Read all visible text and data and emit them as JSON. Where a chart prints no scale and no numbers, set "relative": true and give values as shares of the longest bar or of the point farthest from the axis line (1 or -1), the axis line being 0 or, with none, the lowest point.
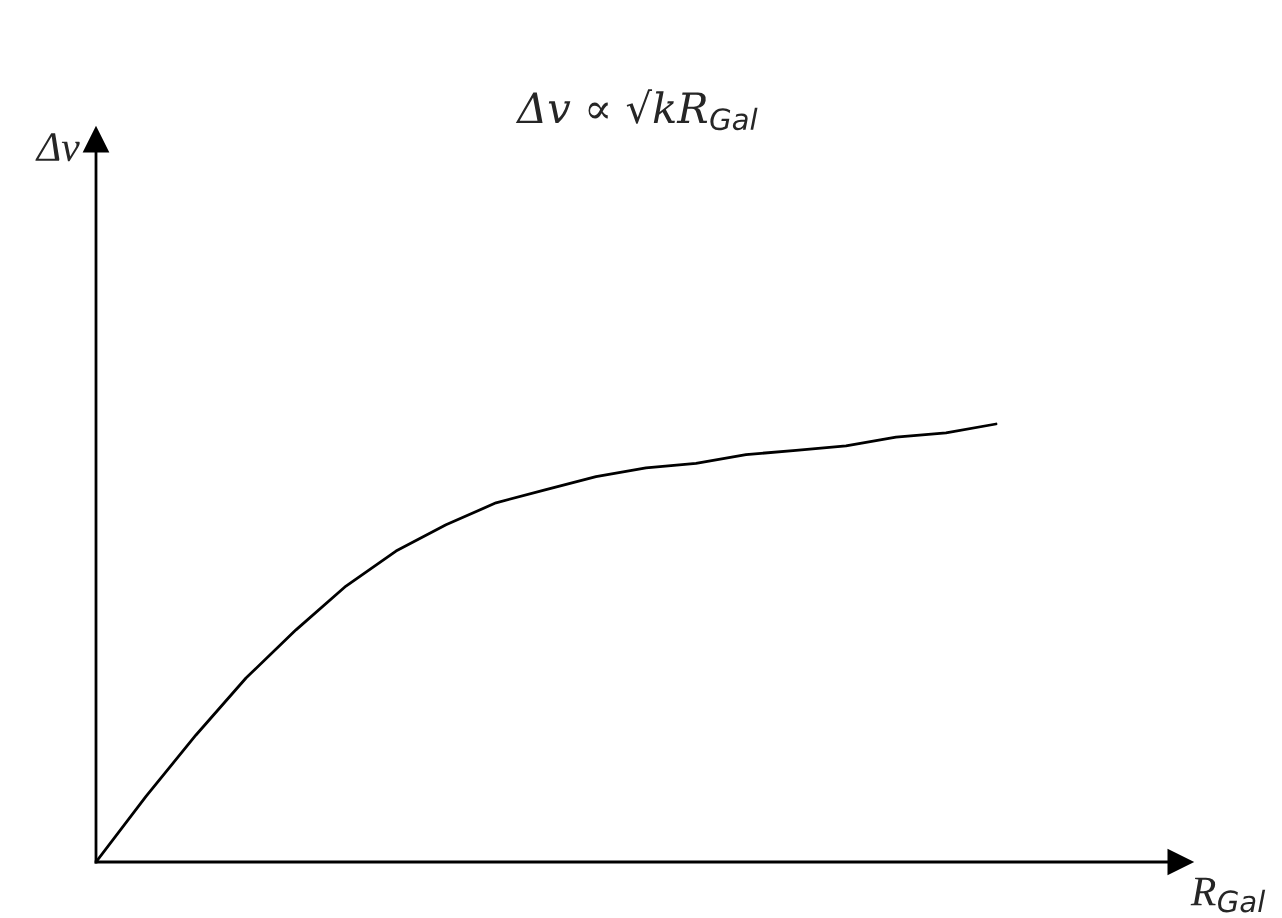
{
  "chart_data": {
    "type": "line",
    "title": "Δv ∝ √kR$_{Gal}$",
    "xlabel": "R$_{Gal}$",
    "annotations": [
      "Δv"
    ],
    "relative": true,
    "categories": [
      null,
      null,
      null,
      null,
      null,
      null,
      null,
      null,
      null,
      null,
      null,
      null,
      null,
      null,
      null,
      null,
      null,
      null,
      null
    ],
    "series": [
      {
        "color": "#000000",
        "values": [
          0,
          0.15,
          0.29,
          0.42,
          0.53,
          0.63,
          0.71,
          0.77,
          0.82,
          0.85,
          0.88,
          0.9,
          0.91,
          0.93,
          0.94,
          0.95,
          0.97,
          0.98,
          1.0
        ]
      }
    ],
    "legend": false,
    "marker": "none",
    "line_style": "solid"
  }
}
